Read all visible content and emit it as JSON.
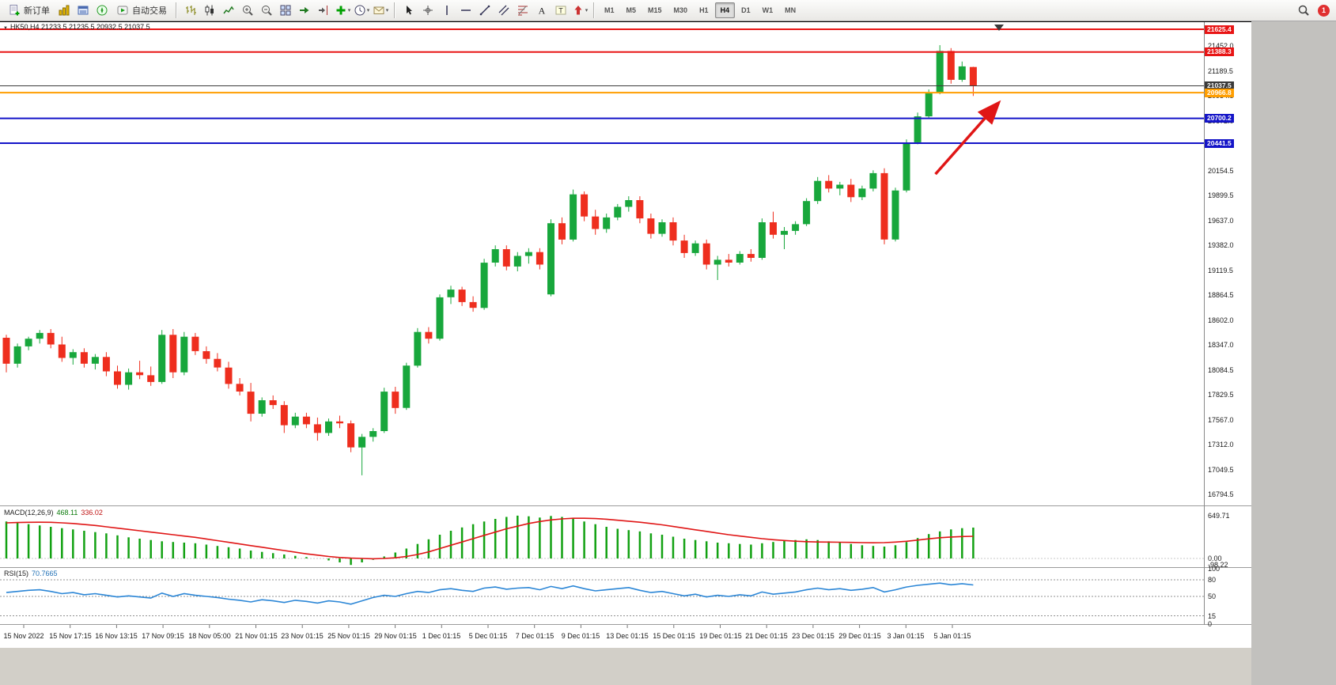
{
  "toolbar": {
    "new_order_label": "新订单",
    "autotrading_label": "自动交易",
    "timeframes": [
      "M1",
      "M5",
      "M15",
      "M30",
      "H1",
      "H4",
      "D1",
      "W1",
      "MN"
    ],
    "active_timeframe": "H4",
    "notification_count": "1",
    "icons": {
      "new-order": "document-plus",
      "market-watch": "gold-columns",
      "data-window": "blue-panel",
      "navigator": "compass",
      "autotrading": "play-chart",
      "bar-chart": "ohlc-bars",
      "candlestick-chart": "candles",
      "line-chart": "zigzag",
      "zoom-in": "magnifier-plus",
      "zoom-out": "magnifier-minus",
      "tile-windows": "grid-2x2",
      "auto-scroll": "arrow-right",
      "chart-shift": "arrow-to-bar",
      "indicators": "green-plus",
      "periods": "clock",
      "templates": "envelope",
      "cursor": "pointer-arrow",
      "crosshair": "crosshair",
      "vertical-line": "vline",
      "horizontal-line": "hline",
      "trendline": "diagonal",
      "equidistant-channel": "parallel-lines",
      "fibonacci": "fib-levels",
      "text": "letter-A",
      "text-label": "boxed-T",
      "arrows": "arrow-shape",
      "search": "magnifier",
      "notification": "red-circle-count"
    }
  },
  "chart": {
    "symbol_line": "HK50,H4 21233.5 21235.5 20932.5 21037.5",
    "macd_label": "MACD(12,26,9)",
    "macd_main_value": "468.11",
    "macd_signal_value": "336.02",
    "rsi_label": "RSI(15)",
    "rsi_value": "70.7665"
  },
  "chart_data": [
    {
      "type": "candlestick",
      "symbol": "HK50",
      "timeframe": "H4",
      "current_ohlc": {
        "open": 21233.5,
        "high": 21235.5,
        "low": 20932.5,
        "close": 21037.5
      },
      "ylim": [
        16678,
        21699
      ],
      "colors": {
        "up": "#18a73c",
        "down": "#ee2e1e"
      },
      "y_axis_labels": [
        21452.0,
        21189.5,
        20934.5,
        20672.0,
        20417.0,
        20154.5,
        19899.5,
        19637.0,
        19382.0,
        19119.5,
        18864.5,
        18602.0,
        18347.0,
        18084.5,
        17829.5,
        17567.0,
        17312.0,
        17049.5,
        16794.5
      ],
      "price_lines": [
        {
          "value": 21625.4,
          "color": "#e81414",
          "width": 2,
          "role": "resistance"
        },
        {
          "value": 21388.3,
          "color": "#e81414",
          "width": 2,
          "role": "resistance"
        },
        {
          "value": 21037.5,
          "color": "#3a3a3a",
          "width": 1,
          "role": "current-price"
        },
        {
          "value": 20966.8,
          "color": "#ff9e00",
          "width": 2,
          "role": "support"
        },
        {
          "value": 20700.2,
          "color": "#1414c8",
          "width": 2,
          "role": "support"
        },
        {
          "value": 20441.5,
          "color": "#1414c8",
          "width": 2,
          "role": "support"
        }
      ],
      "x_axis_labels": [
        "15 Nov 2022",
        "15 Nov 17:15",
        "16 Nov 13:15",
        "17 Nov 09:15",
        "18 Nov 05:00",
        "21 Nov 01:15",
        "23 Nov 01:15",
        "25 Nov 01:15",
        "29 Nov 01:15",
        "1 Dec 01:15",
        "5 Dec 01:15",
        "7 Dec 01:15",
        "9 Dec 01:15",
        "13 Dec 01:15",
        "15 Dec 01:15",
        "19 Dec 01:15",
        "21 Dec 01:15",
        "23 Dec 01:15",
        "29 Dec 01:15",
        "3 Jan 01:15",
        "5 Jan 01:15"
      ],
      "annotation_arrow": {
        "from_bar": 83.6,
        "from_price": 20120,
        "to_bar": 89.2,
        "to_price": 20850,
        "color": "#e01616"
      },
      "candles": [
        [
          18420,
          18450,
          18060,
          18150
        ],
        [
          18150,
          18360,
          18110,
          18330
        ],
        [
          18330,
          18430,
          18290,
          18410
        ],
        [
          18410,
          18500,
          18360,
          18470
        ],
        [
          18470,
          18510,
          18310,
          18350
        ],
        [
          18350,
          18430,
          18170,
          18210
        ],
        [
          18210,
          18300,
          18140,
          18270
        ],
        [
          18270,
          18310,
          18110,
          18150
        ],
        [
          18150,
          18250,
          18090,
          18220
        ],
        [
          18220,
          18270,
          18020,
          18070
        ],
        [
          18070,
          18130,
          17890,
          17930
        ],
        [
          17930,
          18100,
          17880,
          18060
        ],
        [
          18060,
          18180,
          17990,
          18030
        ],
        [
          18030,
          18120,
          17920,
          17960
        ],
        [
          17960,
          18500,
          17940,
          18450
        ],
        [
          18450,
          18510,
          18000,
          18060
        ],
        [
          18060,
          18480,
          18030,
          18430
        ],
        [
          18430,
          18470,
          18240,
          18280
        ],
        [
          18280,
          18330,
          18150,
          18200
        ],
        [
          18200,
          18260,
          18070,
          18110
        ],
        [
          18110,
          18170,
          17890,
          17940
        ],
        [
          17940,
          18000,
          17820,
          17860
        ],
        [
          17860,
          17950,
          17550,
          17630
        ],
        [
          17630,
          17800,
          17600,
          17770
        ],
        [
          17770,
          17820,
          17680,
          17720
        ],
        [
          17720,
          17760,
          17430,
          17510
        ],
        [
          17510,
          17640,
          17480,
          17600
        ],
        [
          17600,
          17640,
          17480,
          17520
        ],
        [
          17520,
          17590,
          17350,
          17430
        ],
        [
          17430,
          17580,
          17400,
          17550
        ],
        [
          17550,
          17610,
          17480,
          17530
        ],
        [
          17530,
          17560,
          17230,
          17280
        ],
        [
          17280,
          17420,
          16990,
          17390
        ],
        [
          17390,
          17480,
          17340,
          17450
        ],
        [
          17450,
          17900,
          17430,
          17860
        ],
        [
          17860,
          17910,
          17630,
          17690
        ],
        [
          17690,
          18160,
          17670,
          18130
        ],
        [
          18130,
          18520,
          18110,
          18480
        ],
        [
          18480,
          18530,
          18360,
          18410
        ],
        [
          18410,
          18870,
          18390,
          18840
        ],
        [
          18840,
          18960,
          18770,
          18920
        ],
        [
          18920,
          18950,
          18750,
          18790
        ],
        [
          18790,
          18850,
          18690,
          18730
        ],
        [
          18730,
          19240,
          18710,
          19200
        ],
        [
          19200,
          19380,
          19160,
          19340
        ],
        [
          19340,
          19380,
          19120,
          19160
        ],
        [
          19160,
          19310,
          19110,
          19270
        ],
        [
          19270,
          19350,
          19190,
          19310
        ],
        [
          19310,
          19350,
          19130,
          19180
        ],
        [
          18870,
          19650,
          18850,
          19610
        ],
        [
          19610,
          19670,
          19390,
          19440
        ],
        [
          19440,
          19960,
          19420,
          19910
        ],
        [
          19910,
          19940,
          19630,
          19680
        ],
        [
          19680,
          19750,
          19490,
          19550
        ],
        [
          19550,
          19710,
          19510,
          19670
        ],
        [
          19670,
          19810,
          19640,
          19780
        ],
        [
          19780,
          19890,
          19730,
          19850
        ],
        [
          19850,
          19890,
          19610,
          19660
        ],
        [
          19660,
          19710,
          19450,
          19500
        ],
        [
          19500,
          19650,
          19470,
          19620
        ],
        [
          19620,
          19670,
          19380,
          19430
        ],
        [
          19430,
          19490,
          19250,
          19300
        ],
        [
          19300,
          19430,
          19270,
          19400
        ],
        [
          19400,
          19440,
          19130,
          19180
        ],
        [
          19180,
          19270,
          19020,
          19230
        ],
        [
          19230,
          19290,
          19160,
          19200
        ],
        [
          19200,
          19320,
          19180,
          19290
        ],
        [
          19290,
          19340,
          19210,
          19250
        ],
        [
          19250,
          19660,
          19230,
          19620
        ],
        [
          19620,
          19730,
          19450,
          19490
        ],
        [
          19490,
          19570,
          19340,
          19530
        ],
        [
          19530,
          19630,
          19490,
          19600
        ],
        [
          19600,
          19870,
          19580,
          19840
        ],
        [
          19840,
          20090,
          19810,
          20050
        ],
        [
          20050,
          20110,
          19930,
          19970
        ],
        [
          19970,
          20040,
          19900,
          20010
        ],
        [
          20010,
          20070,
          19830,
          19880
        ],
        [
          19880,
          20000,
          19850,
          19970
        ],
        [
          19970,
          20160,
          19940,
          20130
        ],
        [
          20130,
          20180,
          19390,
          19440
        ],
        [
          19440,
          19980,
          19420,
          19950
        ],
        [
          19950,
          20480,
          19930,
          20450
        ],
        [
          20450,
          20760,
          20430,
          20720
        ],
        [
          20720,
          21000,
          20700,
          20970
        ],
        [
          20970,
          21460,
          20950,
          21400
        ],
        [
          21400,
          21430,
          21060,
          21100
        ],
        [
          21100,
          21290,
          21080,
          21240
        ],
        [
          21233.5,
          21235.5,
          20932.5,
          21037.5
        ]
      ]
    },
    {
      "type": "macd",
      "label": "MACD(12,26,9)",
      "params": [
        12,
        26,
        9
      ],
      "main_value": 468.11,
      "signal_value": 336.02,
      "y_axis_labels": [
        649.71,
        0,
        -98.22
      ],
      "colors": {
        "histogram": "#12a112",
        "signal": "#e01616"
      },
      "histogram": [
        560,
        540,
        520,
        500,
        480,
        460,
        440,
        420,
        400,
        380,
        350,
        320,
        300,
        280,
        260,
        250,
        240,
        230,
        210,
        190,
        170,
        150,
        120,
        100,
        80,
        60,
        40,
        20,
        0,
        -30,
        -60,
        -98.22,
        -60,
        -20,
        30,
        90,
        150,
        220,
        290,
        360,
        420,
        470,
        520,
        560,
        600,
        630,
        649.71,
        640,
        620,
        645,
        630,
        600,
        560,
        520,
        480,
        450,
        430,
        410,
        380,
        360,
        330,
        300,
        280,
        260,
        240,
        230,
        220,
        210,
        230,
        250,
        270,
        280,
        290,
        280,
        260,
        240,
        220,
        200,
        190,
        180,
        200,
        250,
        310,
        370,
        410,
        440,
        460,
        468.11
      ],
      "signal": [
        540,
        545,
        548,
        550,
        548,
        540,
        530,
        515,
        500,
        480,
        460,
        440,
        420,
        400,
        380,
        360,
        340,
        320,
        295,
        270,
        245,
        220,
        195,
        170,
        145,
        120,
        95,
        70,
        50,
        30,
        15,
        5,
        0,
        -5,
        0,
        10,
        30,
        60,
        100,
        150,
        200,
        250,
        300,
        350,
        400,
        450,
        490,
        530,
        560,
        585,
        600,
        610,
        610,
        605,
        595,
        580,
        565,
        550,
        530,
        510,
        485,
        460,
        435,
        410,
        385,
        360,
        340,
        320,
        300,
        285,
        272,
        262,
        255,
        250,
        248,
        246,
        244,
        240,
        238,
        240,
        248,
        260,
        278,
        298,
        315,
        325,
        332,
        336.02
      ]
    },
    {
      "type": "rsi",
      "label": "RSI(15)",
      "period": 15,
      "value": 70.7665,
      "levels": [
        80,
        50,
        15
      ],
      "y_axis_labels": [
        100,
        80,
        50,
        15,
        0
      ],
      "color": "#2b86d6",
      "series": [
        57,
        59,
        61,
        62,
        59,
        55,
        57,
        53,
        55,
        52,
        49,
        51,
        49,
        47,
        56,
        50,
        55,
        52,
        50,
        48,
        45,
        43,
        40,
        44,
        42,
        39,
        43,
        41,
        38,
        42,
        40,
        36,
        42,
        48,
        52,
        50,
        55,
        59,
        57,
        62,
        64,
        61,
        59,
        65,
        67,
        63,
        65,
        66,
        62,
        68,
        64,
        69,
        64,
        60,
        62,
        64,
        66,
        61,
        57,
        59,
        55,
        51,
        54,
        49,
        52,
        50,
        53,
        51,
        58,
        54,
        56,
        58,
        62,
        65,
        62,
        64,
        61,
        63,
        66,
        58,
        62,
        67,
        70,
        72,
        74,
        71,
        73,
        70.7665
      ]
    }
  ]
}
